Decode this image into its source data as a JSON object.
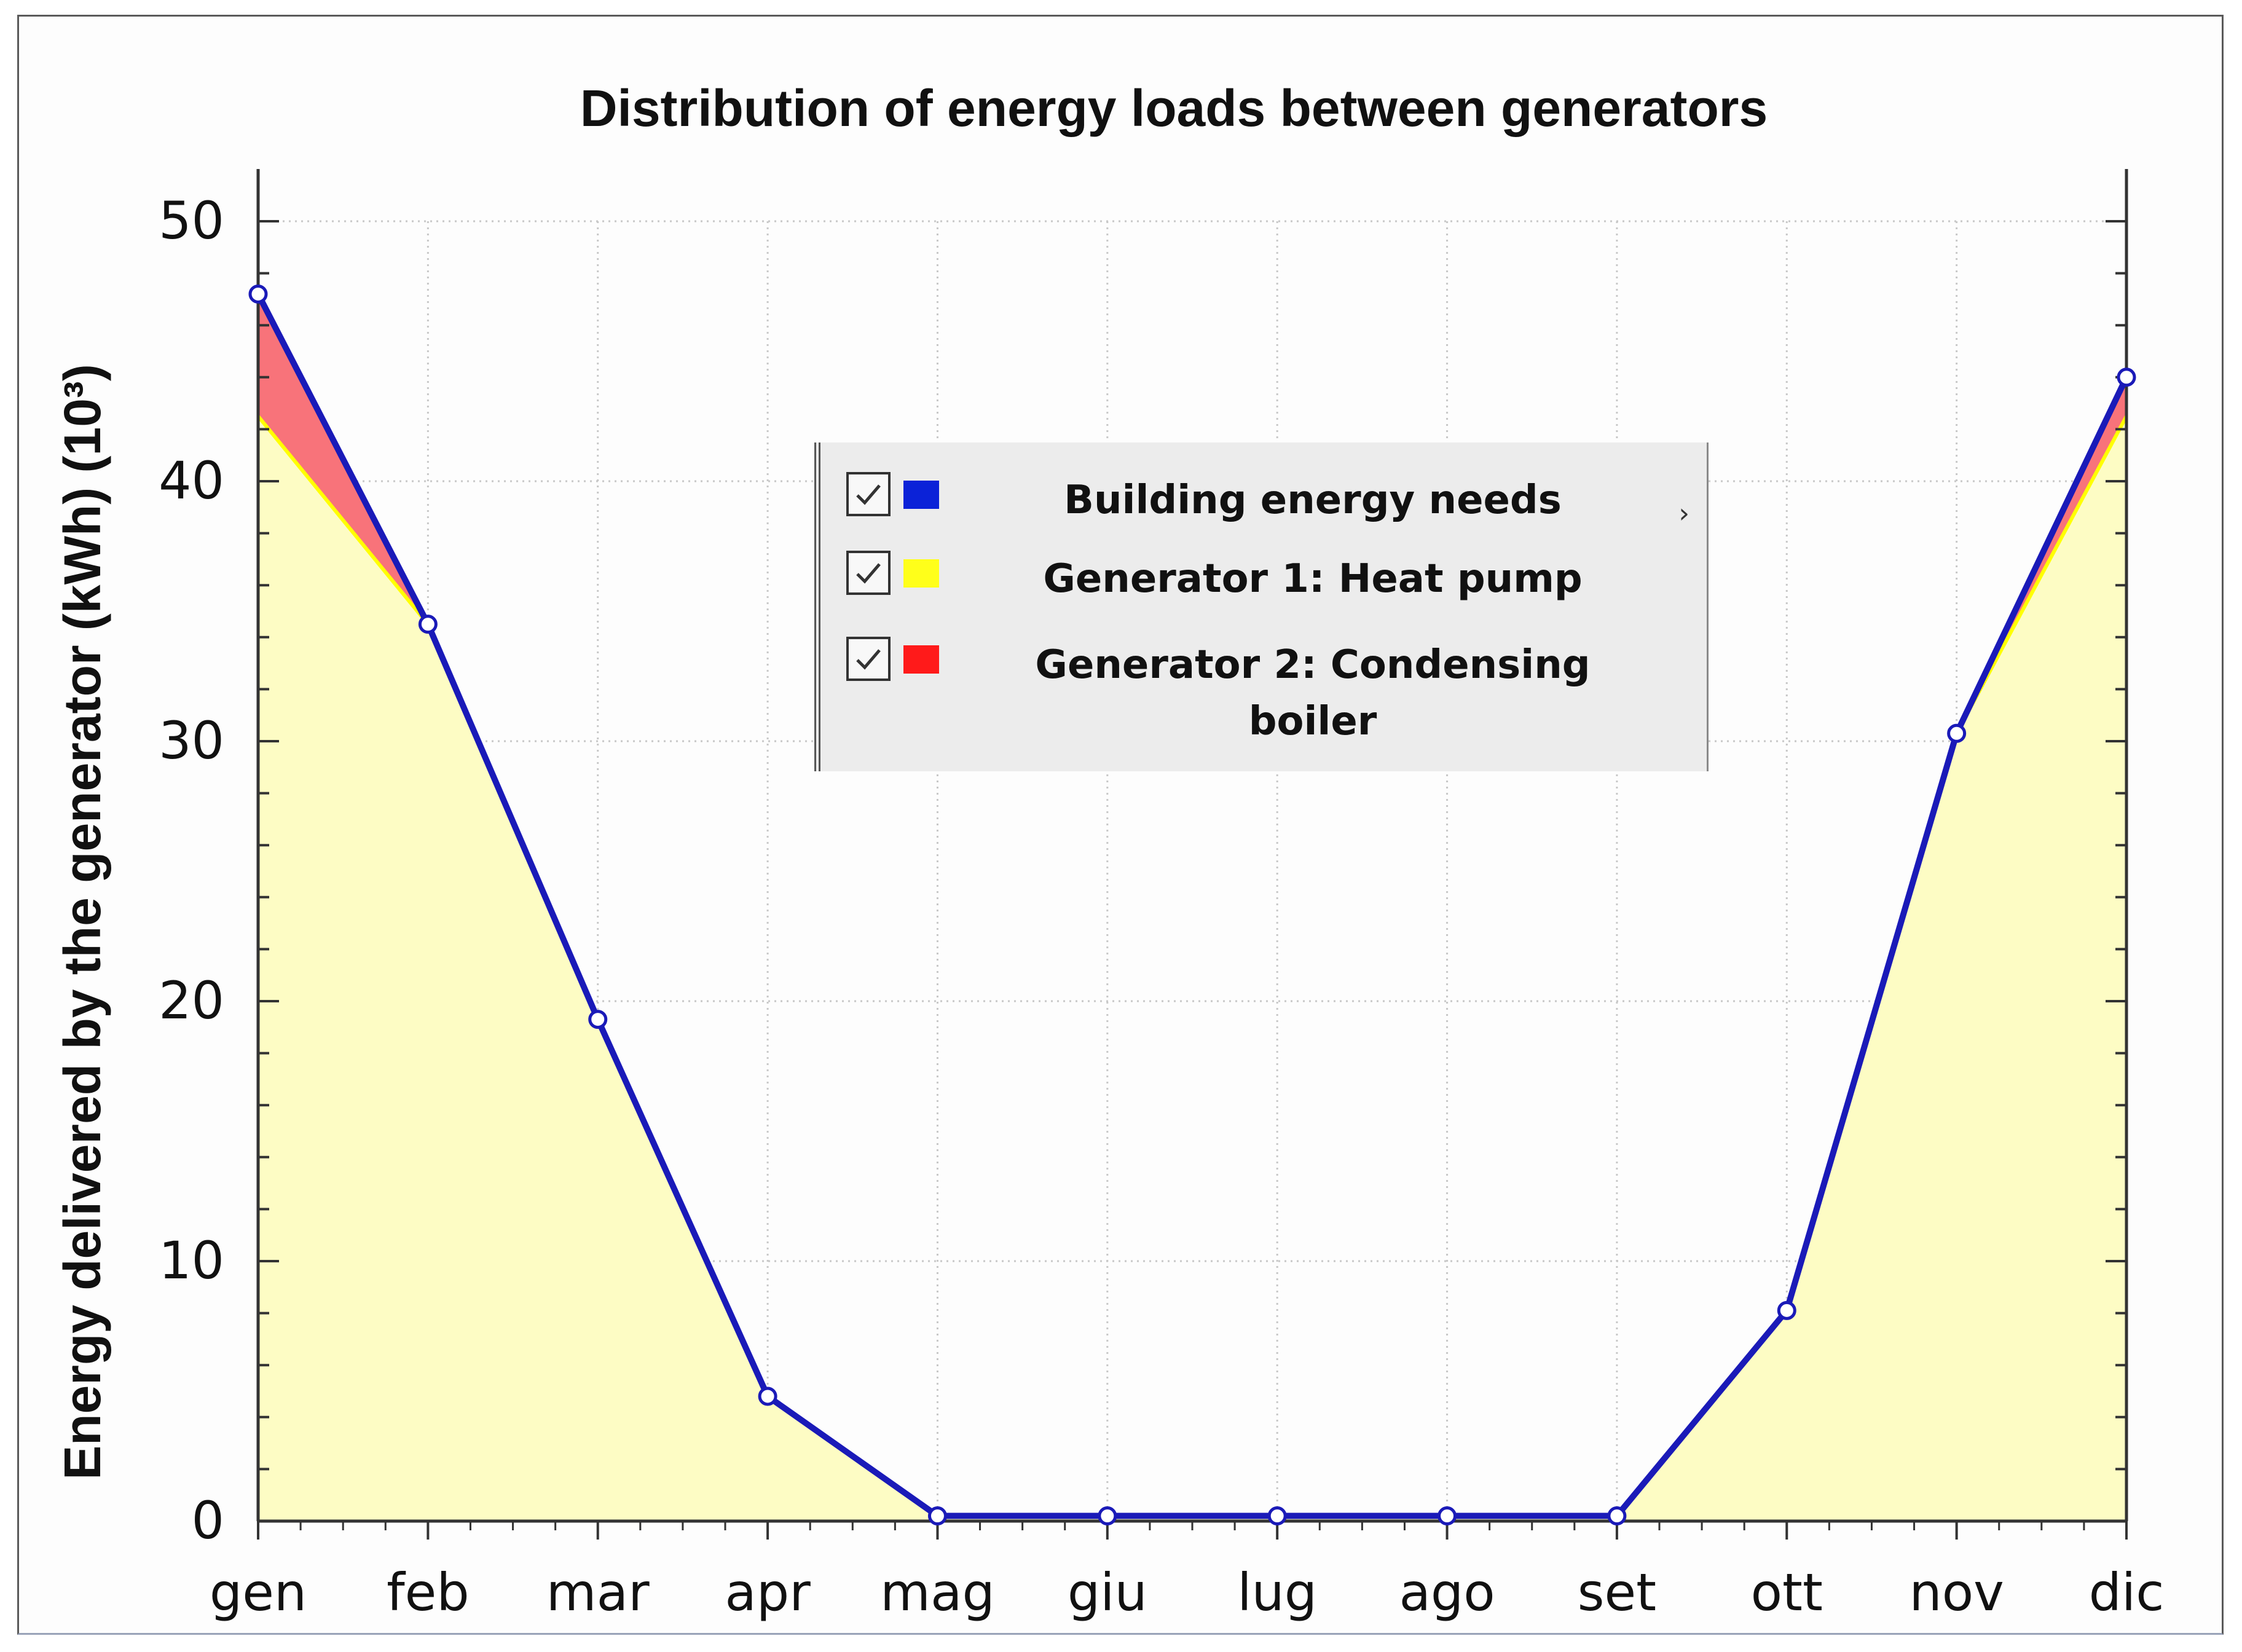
{
  "chart_data": {
    "type": "area",
    "title": "Distribution of energy loads between generators",
    "xlabel": "",
    "ylabel": "Energy delivered by the generator (kWh) (10³)",
    "categories": [
      "gen",
      "feb",
      "mar",
      "apr",
      "mag",
      "giu",
      "lug",
      "ago",
      "set",
      "ott",
      "nov",
      "dic"
    ],
    "ylim": [
      0,
      50
    ],
    "yticks": [
      0,
      10,
      20,
      30,
      40,
      50
    ],
    "grid": true,
    "legend_position": "center",
    "series": [
      {
        "name": "Building energy needs",
        "kind": "line",
        "color": "#1a1ab8",
        "values": [
          47.2,
          34.5,
          19.3,
          4.8,
          0.2,
          0.2,
          0.2,
          0.2,
          0.2,
          8.1,
          30.3,
          44.0
        ]
      },
      {
        "name": "Generator 1: Heat pump",
        "kind": "area",
        "color": "#ffff00",
        "fill": "#fdfcc4",
        "values": [
          42.5,
          34.5,
          19.3,
          4.8,
          0.2,
          0.2,
          0.2,
          0.2,
          0.2,
          8.1,
          30.3,
          42.5
        ]
      },
      {
        "name": "Generator 2: Condensing boiler",
        "kind": "stacked-area",
        "color": "#ff0000",
        "fill": "#f8737a",
        "values": [
          4.7,
          0,
          0,
          0,
          0,
          0,
          0,
          0,
          0,
          0,
          0,
          1.5
        ]
      }
    ]
  },
  "legend": {
    "items": [
      {
        "label": "Building energy needs",
        "checked": true,
        "swatch": "#0b22d8"
      },
      {
        "label": "Generator 1: Heat pump",
        "checked": true,
        "swatch": "#ffff1a"
      },
      {
        "label_line1": "Generator 2: Condensing",
        "label_line2": "boiler",
        "checked": true,
        "swatch": "#ff1a1a"
      }
    ],
    "caret": "›"
  }
}
